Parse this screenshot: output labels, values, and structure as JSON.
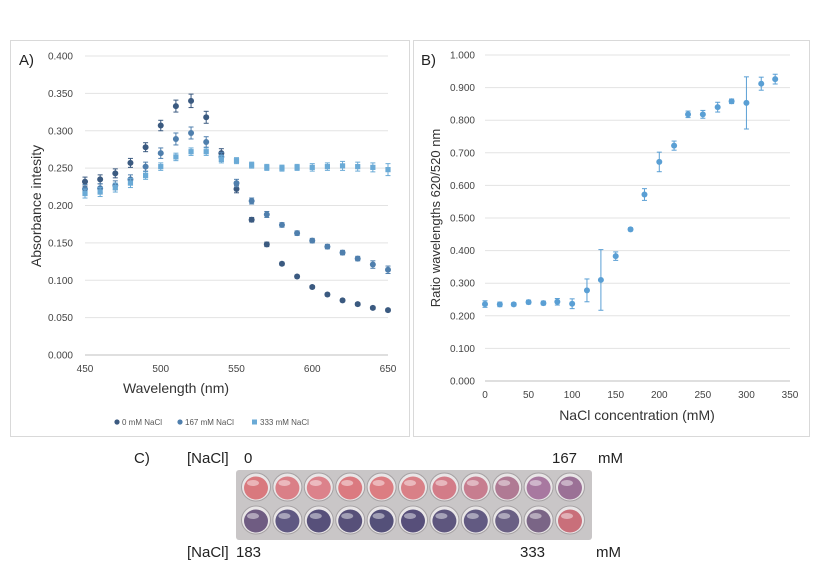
{
  "panel_a": {
    "label": "A)",
    "chart_data": {
      "type": "scatter",
      "title": "",
      "xlabel": "Wavelength (nm)",
      "ylabel": "Absorbance intesity",
      "xlim": [
        450,
        650
      ],
      "ylim": [
        0,
        0.4
      ],
      "x_ticks": [
        "450",
        "500",
        "550",
        "600",
        "650"
      ],
      "y_ticks": [
        "0.000",
        "0.050",
        "0.100",
        "0.150",
        "0.200",
        "0.250",
        "0.300",
        "0.350",
        "0.400"
      ],
      "error_bars": true,
      "legend_position": "bottom",
      "series": [
        {
          "name": "0 mM NaCl",
          "color": "#3b5a80",
          "marker": "circle",
          "x": [
            450,
            460,
            470,
            480,
            490,
            500,
            510,
            520,
            530,
            540,
            550,
            560,
            570,
            580,
            590,
            600,
            610,
            620,
            630,
            640,
            650
          ],
          "y": [
            0.232,
            0.235,
            0.243,
            0.257,
            0.278,
            0.307,
            0.333,
            0.34,
            0.318,
            0.27,
            0.222,
            0.181,
            0.148,
            0.122,
            0.105,
            0.091,
            0.081,
            0.073,
            0.068,
            0.063,
            0.06
          ],
          "err": [
            0.006,
            0.006,
            0.006,
            0.006,
            0.006,
            0.007,
            0.008,
            0.009,
            0.008,
            0.006,
            0.005,
            0.003,
            0.003,
            0.002,
            0.002,
            0.002,
            0.002,
            0.002,
            0.002,
            0.002,
            0.002
          ]
        },
        {
          "name": "167 mM NaCl",
          "color": "#4f7fad",
          "marker": "circle",
          "x": [
            450,
            460,
            470,
            480,
            490,
            500,
            510,
            520,
            530,
            540,
            550,
            560,
            570,
            580,
            590,
            600,
            610,
            620,
            630,
            640,
            650
          ],
          "y": [
            0.222,
            0.223,
            0.227,
            0.235,
            0.252,
            0.27,
            0.289,
            0.297,
            0.285,
            0.265,
            0.23,
            0.206,
            0.188,
            0.174,
            0.163,
            0.153,
            0.145,
            0.137,
            0.129,
            0.121,
            0.114
          ],
          "err": [
            0.006,
            0.006,
            0.006,
            0.006,
            0.006,
            0.007,
            0.008,
            0.008,
            0.007,
            0.006,
            0.005,
            0.004,
            0.004,
            0.003,
            0.003,
            0.003,
            0.003,
            0.003,
            0.003,
            0.005,
            0.005
          ]
        },
        {
          "name": "333 mM NaCl",
          "color": "#6aaad6",
          "marker": "square",
          "x": [
            450,
            460,
            470,
            480,
            490,
            500,
            510,
            520,
            530,
            540,
            550,
            560,
            570,
            580,
            590,
            600,
            610,
            620,
            630,
            640,
            650
          ],
          "y": [
            0.216,
            0.218,
            0.224,
            0.23,
            0.24,
            0.252,
            0.265,
            0.272,
            0.272,
            0.262,
            0.26,
            0.254,
            0.251,
            0.25,
            0.251,
            0.251,
            0.252,
            0.253,
            0.252,
            0.251,
            0.248
          ],
          "err": [
            0.006,
            0.006,
            0.006,
            0.006,
            0.005,
            0.005,
            0.005,
            0.005,
            0.005,
            0.005,
            0.004,
            0.004,
            0.004,
            0.004,
            0.004,
            0.005,
            0.005,
            0.006,
            0.006,
            0.006,
            0.008
          ]
        }
      ]
    }
  },
  "panel_b": {
    "label": "B)",
    "chart_data": {
      "type": "scatter",
      "title": "",
      "xlabel": "NaCl concentration (mM)",
      "ylabel": "Ratio wavelengths 620/520 nm",
      "xlim": [
        0,
        350
      ],
      "ylim": [
        0,
        1
      ],
      "x_ticks": [
        "0",
        "50",
        "100",
        "150",
        "200",
        "250",
        "300",
        "350"
      ],
      "y_ticks": [
        "0.000",
        "0.100",
        "0.200",
        "0.300",
        "0.400",
        "0.500",
        "0.600",
        "0.700",
        "0.800",
        "0.900",
        "1.000"
      ],
      "error_bars": true,
      "series": [
        {
          "name": "Ratio 620/520",
          "color": "#5a9fd4",
          "marker": "circle",
          "x": [
            0,
            17,
            33,
            50,
            67,
            83,
            100,
            117,
            133,
            150,
            167,
            183,
            200,
            217,
            233,
            250,
            267,
            283,
            300,
            317,
            333
          ],
          "y": [
            0.236,
            0.235,
            0.235,
            0.242,
            0.239,
            0.243,
            0.237,
            0.278,
            0.31,
            0.383,
            0.465,
            0.572,
            0.672,
            0.722,
            0.818,
            0.818,
            0.84,
            0.858,
            0.853,
            0.912,
            0.926
          ],
          "err": [
            0.01,
            0.007,
            0.005,
            0.006,
            0.006,
            0.01,
            0.015,
            0.035,
            0.093,
            0.013,
            0.005,
            0.018,
            0.03,
            0.014,
            0.01,
            0.012,
            0.015,
            0.007,
            0.08,
            0.02,
            0.015
          ]
        }
      ]
    }
  },
  "panel_c": {
    "label": "C)",
    "top_row": {
      "prefix": "[NaCl]",
      "start": "0",
      "end": "167",
      "unit": "mM"
    },
    "bottom_row": {
      "prefix": "[NaCl]",
      "start": "183",
      "end": "333",
      "unit": "mM"
    },
    "plate": {
      "top_colors": [
        "#d9797e",
        "#da7f87",
        "#dc828b",
        "#db7a80",
        "#dc7d82",
        "#d98087",
        "#d37c88",
        "#c77d8f",
        "#b07a94",
        "#a878a0",
        "#9b7196"
      ],
      "bottom_colors": [
        "#6f5c82",
        "#5f5882",
        "#57507a",
        "#575079",
        "#545079",
        "#574f7a",
        "#5e567e",
        "#625a82",
        "#6a6084",
        "#7a6586",
        "#c96f7a"
      ]
    }
  }
}
